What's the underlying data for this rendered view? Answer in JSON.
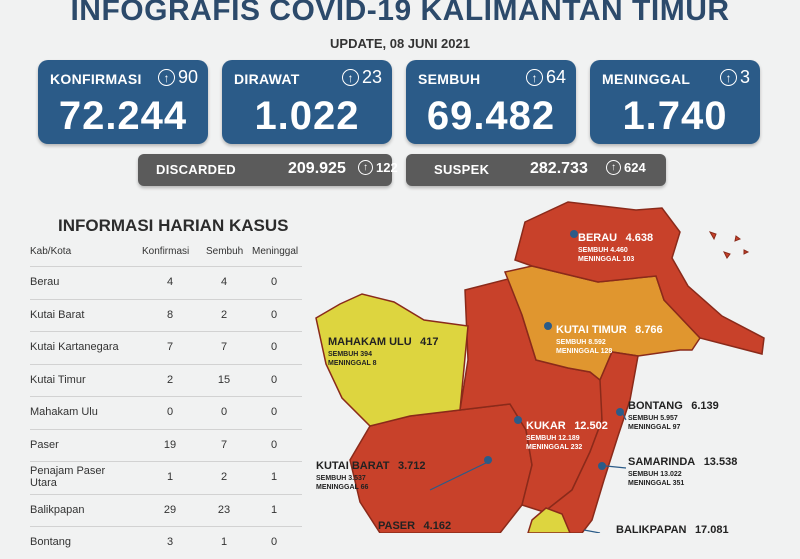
{
  "header": {
    "title": "INFOGRAFIS COVID-19 KALIMANTAN TIMUR",
    "update": "UPDATE, 08 JUNI 2021"
  },
  "stats": [
    {
      "label": "KONFIRMASI",
      "increase": "90",
      "value": "72.244"
    },
    {
      "label": "DIRAWAT",
      "increase": "23",
      "value": "1.022"
    },
    {
      "label": "SEMBUH",
      "increase": "64",
      "value": "69.482"
    },
    {
      "label": "MENINGGAL",
      "increase": "3",
      "value": "1.740"
    }
  ],
  "secondary": [
    {
      "label": "DISCARDED",
      "value": "209.925",
      "increase": "122"
    },
    {
      "label": "SUSPEK",
      "value": "282.733",
      "increase": "624"
    }
  ],
  "table": {
    "title": "INFORMASI HARIAN KASUS",
    "headers": [
      "Kab/Kota",
      "Konfirmasi",
      "Sembuh",
      "Meninggal"
    ],
    "rows": [
      {
        "name": "Berau",
        "konfirmasi": "4",
        "sembuh": "4",
        "meninggal": "0"
      },
      {
        "name": "Kutai Barat",
        "konfirmasi": "8",
        "sembuh": "2",
        "meninggal": "0"
      },
      {
        "name": "Kutai Kartanegara",
        "konfirmasi": "7",
        "sembuh": "7",
        "meninggal": "0"
      },
      {
        "name": "Kutai Timur",
        "konfirmasi": "2",
        "sembuh": "15",
        "meninggal": "0"
      },
      {
        "name": "Mahakam Ulu",
        "konfirmasi": "0",
        "sembuh": "0",
        "meninggal": "0"
      },
      {
        "name": "Paser",
        "konfirmasi": "19",
        "sembuh": "7",
        "meninggal": "0"
      },
      {
        "name": "Penajam Paser Utara",
        "konfirmasi": "1",
        "sembuh": "2",
        "meninggal": "1"
      },
      {
        "name": "Balikpapan",
        "konfirmasi": "29",
        "sembuh": "23",
        "meninggal": "1"
      },
      {
        "name": "Bontang",
        "konfirmasi": "3",
        "sembuh": "1",
        "meninggal": "0"
      }
    ]
  },
  "map": {
    "regions": [
      {
        "name": "BERAU",
        "total": "4.638",
        "sembuh": "SEMBUH 4.460",
        "meninggal": "MENINGGAL 103"
      },
      {
        "name": "KUTAI TIMUR",
        "total": "8.766",
        "sembuh": "SEMBUH 8.592",
        "meninggal": "MENINGGAL 128"
      },
      {
        "name": "MAHAKAM ULU",
        "total": "417",
        "sembuh": "SEMBUH 394",
        "meninggal": "MENINGGAL 8"
      },
      {
        "name": "KUKAR",
        "total": "12.502",
        "sembuh": "SEMBUH 12.189",
        "meninggal": "MENINGGAL 232"
      },
      {
        "name": "BONTANG",
        "total": "6.139",
        "sembuh": "SEMBUH 5.957",
        "meninggal": "MENINGGAL 97"
      },
      {
        "name": "KUTAI BARAT",
        "total": "3.712",
        "sembuh": "SEMBUH 3.537",
        "meninggal": "MENINGGAL 66"
      },
      {
        "name": "SAMARINDA",
        "total": "13.538",
        "sembuh": "SEMBUH 13.022",
        "meninggal": "MENINGGAL 351"
      },
      {
        "name": "PASER",
        "total": "4.162"
      },
      {
        "name": "BALIKPAPAN",
        "total": "17.081"
      }
    ],
    "colors": {
      "red": "#c8412a",
      "orange": "#e0962f",
      "yellow": "#ddd53f",
      "border": "#8a2a1a"
    }
  }
}
